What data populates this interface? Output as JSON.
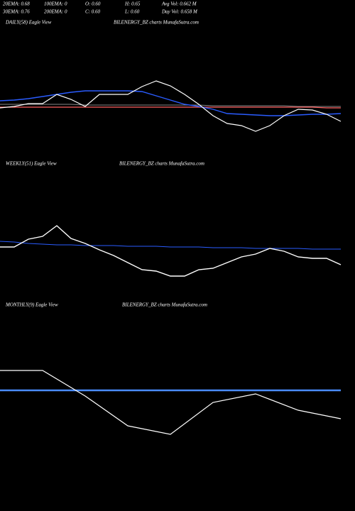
{
  "header": {
    "rows": [
      [
        "20EMA: 0.68",
        "100EMA: 0",
        "O: 0.60",
        "H: 0.65",
        "Avg Vol: 0.662  M"
      ],
      [
        "30EMA: 0.76",
        "200EMA: 0",
        "C: 0.60",
        "L: 0.60",
        "Day Vol: 0.658  M"
      ]
    ]
  },
  "chart_data": [
    {
      "type": "line",
      "title": "DAILY(58) Eagle  View",
      "subtitle": "BILENERGY_BZ charts MunafaSutra.com",
      "x": [
        0,
        1,
        2,
        3,
        4,
        5,
        6,
        7,
        8,
        9,
        10,
        11,
        12,
        13,
        14,
        15,
        16,
        17,
        18,
        19,
        20,
        21,
        22,
        23,
        24
      ],
      "xlim": [
        0,
        24
      ],
      "ylim": [
        0,
        100
      ],
      "series": [
        {
          "color": "#888888",
          "values": [
            53,
            53,
            53,
            53,
            53,
            53,
            52,
            52,
            52,
            52,
            52,
            52,
            52,
            52,
            52,
            51,
            51,
            51,
            51,
            51,
            51,
            50,
            50,
            50,
            50
          ]
        },
        {
          "color": "#ff6060",
          "values": [
            49,
            49,
            49,
            49,
            49,
            49,
            49,
            49,
            49,
            49,
            49,
            49,
            49,
            49,
            49,
            49,
            49,
            49,
            49,
            49,
            49,
            49,
            49,
            48,
            48
          ]
        },
        {
          "color": "#2a5cff",
          "values": [
            58,
            59,
            61,
            64,
            67,
            70,
            72,
            72,
            72,
            72,
            71,
            65,
            59,
            53,
            50,
            46,
            40,
            39,
            38,
            37,
            37,
            38,
            39,
            39,
            40
          ]
        },
        {
          "color": "#ffffff",
          "values": [
            48,
            50,
            54,
            54,
            67,
            60,
            50,
            67,
            67,
            67,
            78,
            86,
            79,
            67,
            53,
            37,
            26,
            23,
            15,
            23,
            37,
            46,
            45,
            39,
            29
          ]
        }
      ]
    },
    {
      "type": "line",
      "title": "WEEKLY(51) Eagle  View",
      "subtitle": "BILENERGY_BZ charts MunafaSutra.com",
      "x": [
        0,
        1,
        2,
        3,
        4,
        5,
        6,
        7,
        8,
        9,
        10,
        11,
        12,
        13,
        14,
        15,
        16,
        17,
        18,
        19,
        20,
        21,
        22,
        23,
        24
      ],
      "xlim": [
        0,
        24
      ],
      "ylim": [
        0,
        100
      ],
      "series": [
        {
          "color": "#2a5cff",
          "values": [
            60,
            59,
            57,
            56,
            55,
            55,
            54,
            54,
            54,
            53,
            53,
            53,
            52,
            52,
            52,
            51,
            51,
            51,
            50,
            50,
            50,
            50,
            49,
            49,
            49
          ]
        },
        {
          "color": "#ffffff",
          "values": [
            52,
            52,
            63,
            67,
            82,
            64,
            57,
            48,
            40,
            30,
            20,
            18,
            11,
            11,
            20,
            22,
            30,
            38,
            42,
            50,
            46,
            38,
            36,
            36,
            27
          ]
        }
      ]
    },
    {
      "type": "line",
      "title": "MONTHLY(9) Eagle  View",
      "subtitle": "BILENERGY_BZ charts MunafaSutra.com",
      "x": [
        0,
        1,
        2,
        3,
        4,
        5,
        6,
        7,
        8
      ],
      "xlim": [
        0,
        8
      ],
      "ylim": [
        0,
        150
      ],
      "series": [
        {
          "color": "#4a8cff",
          "values": [
            100,
            100,
            100,
            100,
            100,
            100,
            100,
            100,
            100
          ]
        },
        {
          "color": "#ffffff",
          "values": [
            128,
            128,
            92,
            50,
            38,
            83,
            95,
            72,
            60
          ]
        }
      ]
    }
  ]
}
